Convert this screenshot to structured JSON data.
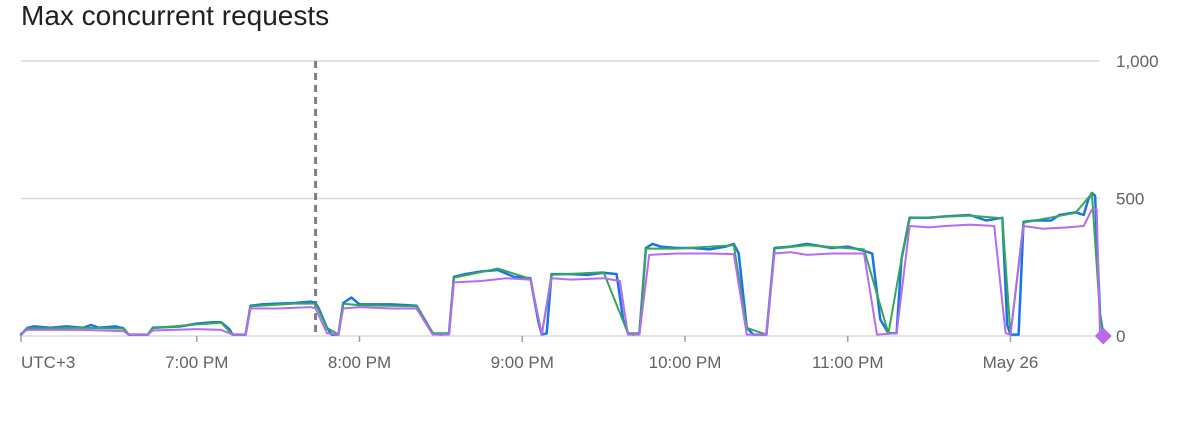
{
  "title": "Max concurrent requests",
  "chart_data": {
    "type": "line",
    "title": "Max concurrent requests",
    "y_ticks": [
      "1,000",
      "500",
      "0"
    ],
    "y_tick_values": [
      1000,
      500,
      0
    ],
    "ylim": [
      0,
      1000
    ],
    "x_tick_labels": [
      "UTC+3",
      "7:00 PM",
      "8:00 PM",
      "9:00 PM",
      "10:00 PM",
      "11:00 PM",
      "May 26"
    ],
    "x_tick_hours": [
      17.92,
      19.0,
      20.0,
      21.0,
      22.0,
      23.0,
      24.0
    ],
    "xlim_hours": [
      17.92,
      24.55
    ],
    "grid": true,
    "marker_line_hour": 19.73,
    "colors": {
      "blue": "#1a73e8",
      "green": "#34a853",
      "purple": "#b56cf0",
      "marker": "#7c8086",
      "grid": "#dadce0"
    },
    "series": [
      {
        "color": "#1a73e8",
        "points": [
          [
            17.92,
            5
          ],
          [
            17.96,
            30
          ],
          [
            18.0,
            35
          ],
          [
            18.1,
            30
          ],
          [
            18.2,
            35
          ],
          [
            18.3,
            30
          ],
          [
            18.35,
            40
          ],
          [
            18.4,
            30
          ],
          [
            18.5,
            35
          ],
          [
            18.55,
            28
          ],
          [
            18.58,
            5
          ],
          [
            18.62,
            5
          ],
          [
            18.7,
            5
          ],
          [
            18.73,
            30
          ],
          [
            18.8,
            32
          ],
          [
            18.9,
            35
          ],
          [
            19.0,
            45
          ],
          [
            19.1,
            50
          ],
          [
            19.15,
            50
          ],
          [
            19.2,
            25
          ],
          [
            19.22,
            5
          ],
          [
            19.3,
            5
          ],
          [
            19.33,
            110
          ],
          [
            19.4,
            115
          ],
          [
            19.5,
            118
          ],
          [
            19.6,
            120
          ],
          [
            19.7,
            125
          ],
          [
            19.73,
            120
          ],
          [
            19.75,
            100
          ],
          [
            19.8,
            30
          ],
          [
            19.83,
            5
          ],
          [
            19.87,
            5
          ],
          [
            19.9,
            120
          ],
          [
            19.95,
            140
          ],
          [
            20.0,
            115
          ],
          [
            20.1,
            115
          ],
          [
            20.2,
            115
          ],
          [
            20.3,
            112
          ],
          [
            20.35,
            110
          ],
          [
            20.4,
            60
          ],
          [
            20.45,
            10
          ],
          [
            20.5,
            5
          ],
          [
            20.55,
            10
          ],
          [
            20.58,
            215
          ],
          [
            20.65,
            225
          ],
          [
            20.75,
            235
          ],
          [
            20.85,
            240
          ],
          [
            20.95,
            215
          ],
          [
            21.05,
            210
          ],
          [
            21.1,
            50
          ],
          [
            21.12,
            5
          ],
          [
            21.15,
            10
          ],
          [
            21.18,
            225
          ],
          [
            21.3,
            225
          ],
          [
            21.4,
            222
          ],
          [
            21.5,
            230
          ],
          [
            21.58,
            225
          ],
          [
            21.62,
            60
          ],
          [
            21.65,
            10
          ],
          [
            21.68,
            5
          ],
          [
            21.72,
            10
          ],
          [
            21.76,
            320
          ],
          [
            21.8,
            335
          ],
          [
            21.85,
            325
          ],
          [
            21.95,
            320
          ],
          [
            22.05,
            320
          ],
          [
            22.15,
            315
          ],
          [
            22.25,
            325
          ],
          [
            22.3,
            335
          ],
          [
            22.33,
            300
          ],
          [
            22.38,
            30
          ],
          [
            22.42,
            5
          ],
          [
            22.5,
            5
          ],
          [
            22.55,
            320
          ],
          [
            22.65,
            325
          ],
          [
            22.75,
            335
          ],
          [
            22.9,
            320
          ],
          [
            23.0,
            325
          ],
          [
            23.1,
            310
          ],
          [
            23.15,
            300
          ],
          [
            23.2,
            60
          ],
          [
            23.25,
            10
          ],
          [
            23.3,
            10
          ],
          [
            23.33,
            280
          ],
          [
            23.38,
            430
          ],
          [
            23.5,
            430
          ],
          [
            23.6,
            435
          ],
          [
            23.75,
            440
          ],
          [
            23.85,
            420
          ],
          [
            23.95,
            430
          ],
          [
            23.98,
            40
          ],
          [
            24.0,
            5
          ],
          [
            24.05,
            5
          ],
          [
            24.08,
            415
          ],
          [
            24.15,
            420
          ],
          [
            24.25,
            420
          ],
          [
            24.3,
            440
          ],
          [
            24.4,
            450
          ],
          [
            24.45,
            440
          ],
          [
            24.48,
            500
          ],
          [
            24.5,
            520
          ],
          [
            24.52,
            510
          ],
          [
            24.55,
            80
          ],
          [
            24.57,
            5
          ]
        ]
      },
      {
        "color": "#34a853",
        "points": [
          [
            17.92,
            5
          ],
          [
            17.96,
            28
          ],
          [
            18.1,
            28
          ],
          [
            18.3,
            30
          ],
          [
            18.55,
            27
          ],
          [
            18.58,
            5
          ],
          [
            18.7,
            5
          ],
          [
            18.73,
            28
          ],
          [
            19.0,
            42
          ],
          [
            19.15,
            48
          ],
          [
            19.22,
            5
          ],
          [
            19.3,
            5
          ],
          [
            19.33,
            108
          ],
          [
            19.6,
            118
          ],
          [
            19.73,
            118
          ],
          [
            19.8,
            30
          ],
          [
            19.87,
            5
          ],
          [
            19.9,
            118
          ],
          [
            20.0,
            112
          ],
          [
            20.35,
            108
          ],
          [
            20.45,
            10
          ],
          [
            20.55,
            10
          ],
          [
            20.58,
            212
          ],
          [
            20.85,
            245
          ],
          [
            21.05,
            208
          ],
          [
            21.12,
            5
          ],
          [
            21.18,
            222
          ],
          [
            21.5,
            232
          ],
          [
            21.65,
            10
          ],
          [
            21.72,
            10
          ],
          [
            21.76,
            318
          ],
          [
            21.95,
            318
          ],
          [
            22.3,
            330
          ],
          [
            22.38,
            30
          ],
          [
            22.5,
            5
          ],
          [
            22.55,
            318
          ],
          [
            22.75,
            330
          ],
          [
            23.1,
            315
          ],
          [
            23.25,
            10
          ],
          [
            23.33,
            280
          ],
          [
            23.38,
            428
          ],
          [
            23.75,
            438
          ],
          [
            23.95,
            428
          ],
          [
            24.0,
            5
          ],
          [
            24.08,
            412
          ],
          [
            24.4,
            448
          ],
          [
            24.5,
            518
          ],
          [
            24.55,
            80
          ],
          [
            24.57,
            5
          ]
        ]
      },
      {
        "color": "#b56cf0",
        "points": [
          [
            17.92,
            10
          ],
          [
            17.96,
            22
          ],
          [
            18.1,
            22
          ],
          [
            18.3,
            22
          ],
          [
            18.55,
            18
          ],
          [
            18.58,
            5
          ],
          [
            18.7,
            5
          ],
          [
            18.73,
            20
          ],
          [
            19.0,
            25
          ],
          [
            19.15,
            22
          ],
          [
            19.22,
            5
          ],
          [
            19.3,
            5
          ],
          [
            19.33,
            100
          ],
          [
            19.5,
            100
          ],
          [
            19.7,
            105
          ],
          [
            19.73,
            100
          ],
          [
            19.8,
            10
          ],
          [
            19.87,
            5
          ],
          [
            19.9,
            100
          ],
          [
            20.0,
            105
          ],
          [
            20.2,
            100
          ],
          [
            20.35,
            100
          ],
          [
            20.45,
            5
          ],
          [
            20.55,
            5
          ],
          [
            20.58,
            195
          ],
          [
            20.75,
            200
          ],
          [
            20.9,
            210
          ],
          [
            21.05,
            205
          ],
          [
            21.12,
            5
          ],
          [
            21.18,
            210
          ],
          [
            21.3,
            205
          ],
          [
            21.5,
            210
          ],
          [
            21.6,
            200
          ],
          [
            21.65,
            5
          ],
          [
            21.72,
            5
          ],
          [
            21.78,
            295
          ],
          [
            21.95,
            300
          ],
          [
            22.15,
            300
          ],
          [
            22.3,
            298
          ],
          [
            22.38,
            5
          ],
          [
            22.5,
            5
          ],
          [
            22.55,
            300
          ],
          [
            22.65,
            305
          ],
          [
            22.75,
            295
          ],
          [
            22.9,
            300
          ],
          [
            23.1,
            300
          ],
          [
            23.18,
            5
          ],
          [
            23.3,
            10
          ],
          [
            23.38,
            400
          ],
          [
            23.5,
            395
          ],
          [
            23.6,
            400
          ],
          [
            23.75,
            405
          ],
          [
            23.9,
            400
          ],
          [
            23.97,
            10
          ],
          [
            24.0,
            5
          ],
          [
            24.08,
            400
          ],
          [
            24.2,
            390
          ],
          [
            24.35,
            395
          ],
          [
            24.45,
            400
          ],
          [
            24.5,
            460
          ],
          [
            24.53,
            460
          ],
          [
            24.55,
            5
          ],
          [
            24.58,
            0
          ]
        ]
      }
    ],
    "end_marker": {
      "hour": 24.57,
      "value": 0,
      "color": "#b56cf0"
    }
  }
}
